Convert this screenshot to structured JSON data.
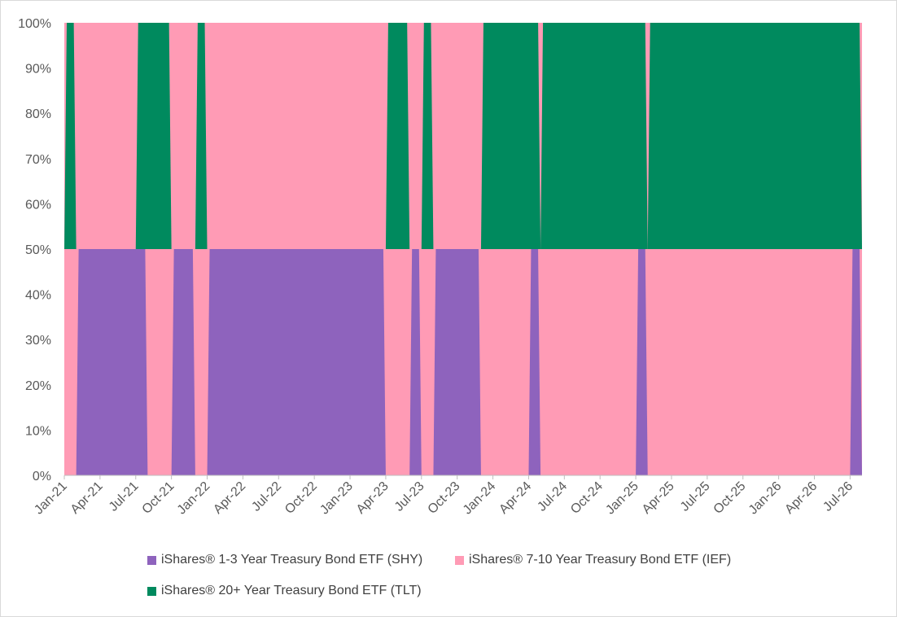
{
  "chart_data": {
    "type": "area",
    "stacked": "percent",
    "title": "",
    "xlabel": "",
    "ylabel": "",
    "ylim": [
      0,
      100
    ],
    "y_ticks": [
      "0%",
      "10%",
      "20%",
      "30%",
      "40%",
      "50%",
      "60%",
      "70%",
      "80%",
      "90%",
      "100%"
    ],
    "x_ticks": [
      "Jan-21",
      "Apr-21",
      "Jul-21",
      "Oct-21",
      "Jan-22",
      "Apr-22",
      "Jul-22",
      "Oct-22",
      "Jan-23",
      "Apr-23",
      "Jul-23",
      "Oct-23",
      "Jan-24",
      "Apr-24",
      "Jul-24",
      "Oct-24",
      "Jan-25",
      "Apr-25",
      "Jul-25",
      "Oct-25",
      "Jan-26",
      "Apr-26",
      "Jul-26"
    ],
    "x_range": [
      "2021-01",
      "2026-08"
    ],
    "grid": false,
    "legend_position": "bottom",
    "series": [
      {
        "name": "iShares® 1-3 Year Treasury Bond ETF (SHY)",
        "color": "#8E63BD",
        "lower": 0,
        "upper": 50,
        "active_periods": [
          [
            "2021-02",
            "2021-07"
          ],
          [
            "2021-10",
            "2021-11"
          ],
          [
            "2022-01",
            "2023-03"
          ],
          [
            "2023-06",
            "2023-06"
          ],
          [
            "2023-08",
            "2023-11"
          ],
          [
            "2024-04",
            "2024-04"
          ],
          [
            "2025-01",
            "2025-01"
          ],
          [
            "2026-07",
            "2026-07"
          ]
        ]
      },
      {
        "name": "iShares® 7-10 Year Treasury Bond ETF (IEF)",
        "color": "#FF9BB5",
        "fills_remainder": true
      },
      {
        "name": "iShares® 20+ Year Treasury Bond ETF (TLT)",
        "color": "#008A5E",
        "lower": 50,
        "upper": 100,
        "active_periods": [
          [
            "2021-01",
            "2021-01"
          ],
          [
            "2021-07",
            "2021-09"
          ],
          [
            "2021-12",
            "2021-12"
          ],
          [
            "2023-04",
            "2023-05"
          ],
          [
            "2023-07",
            "2023-07"
          ],
          [
            "2023-12",
            "2024-04"
          ],
          [
            "2024-05",
            "2025-01"
          ],
          [
            "2025-02",
            "2026-07"
          ]
        ]
      }
    ]
  }
}
